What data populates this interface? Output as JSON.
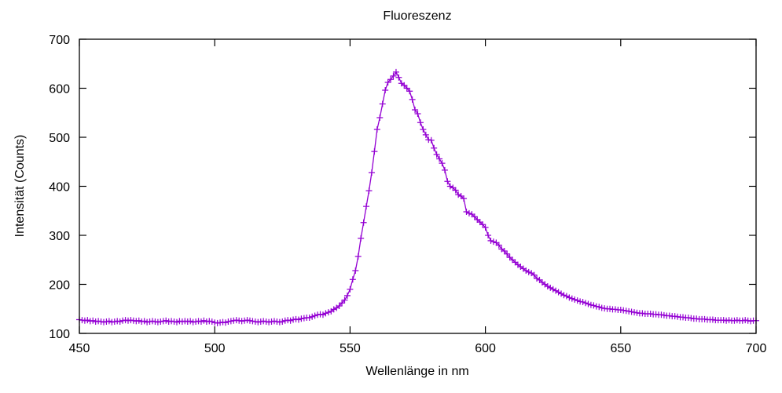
{
  "chart_data": {
    "type": "line",
    "title": "Fluoreszenz",
    "xlabel": "Wellenlänge in nm",
    "ylabel": "Intensität (Counts)",
    "xlim": [
      450,
      700
    ],
    "ylim": [
      100,
      700
    ],
    "xticks": [
      450,
      500,
      550,
      600,
      650,
      700
    ],
    "yticks": [
      100,
      200,
      300,
      400,
      500,
      600,
      700
    ],
    "grid": false,
    "marker": "plus",
    "color": "#9400d3",
    "x_start": 450,
    "x_step": 1,
    "series": [
      {
        "values": [
          128,
          127,
          126,
          127,
          125,
          126,
          124,
          125,
          124,
          123,
          124,
          125,
          123,
          124,
          125,
          124,
          126,
          127,
          126,
          127,
          126,
          125,
          126,
          124,
          125,
          123,
          124,
          125,
          124,
          123,
          124,
          125,
          126,
          124,
          125,
          124,
          123,
          125,
          124,
          125,
          124,
          125,
          123,
          124,
          125,
          124,
          126,
          124,
          125,
          124,
          122,
          121,
          122,
          123,
          122,
          124,
          125,
          126,
          127,
          126,
          125,
          126,
          127,
          126,
          125,
          124,
          123,
          124,
          125,
          124,
          123,
          124,
          125,
          124,
          123,
          124,
          126,
          127,
          126,
          128,
          129,
          128,
          130,
          131,
          132,
          132,
          134,
          136,
          138,
          139,
          138,
          141,
          143,
          145,
          149,
          152,
          156,
          162,
          168,
          177,
          190,
          210,
          228,
          257,
          294,
          326,
          359,
          391,
          428,
          471,
          516,
          540,
          568,
          596,
          612,
          618,
          625,
          633,
          622,
          610,
          606,
          600,
          594,
          577,
          556,
          548,
          530,
          516,
          505,
          495,
          494,
          478,
          465,
          456,
          447,
          433,
          410,
          400,
          397,
          392,
          383,
          380,
          375,
          348,
          345,
          343,
          338,
          332,
          327,
          322,
          316,
          300,
          289,
          287,
          285,
          280,
          272,
          268,
          262,
          255,
          250,
          245,
          240,
          236,
          232,
          228,
          225,
          223,
          219,
          212,
          209,
          204,
          200,
          196,
          193,
          190,
          187,
          184,
          181,
          178,
          176,
          173,
          171,
          169,
          167,
          165,
          164,
          162,
          160,
          158,
          157,
          155,
          154,
          152,
          151,
          150,
          150,
          149,
          149,
          148,
          148,
          147,
          146,
          145,
          144,
          143,
          142,
          141,
          141,
          140,
          140,
          140,
          139,
          139,
          138,
          138,
          137,
          136,
          136,
          135,
          135,
          134,
          133,
          133,
          132,
          132,
          131,
          130,
          130,
          129,
          129,
          129,
          128,
          128,
          128,
          127,
          127,
          127,
          127,
          126,
          127,
          126,
          126,
          127,
          126,
          126,
          127,
          126,
          125,
          126,
          126
        ]
      }
    ]
  }
}
